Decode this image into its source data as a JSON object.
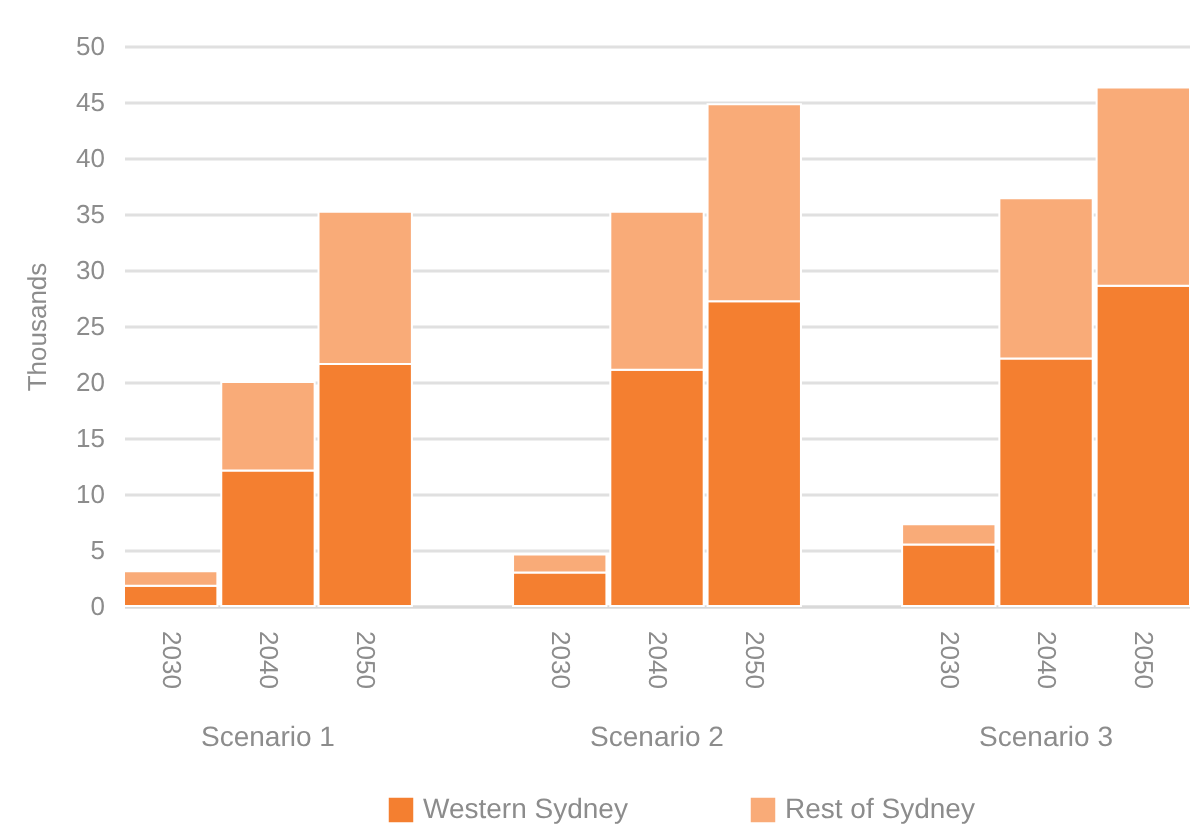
{
  "chart_data": {
    "type": "bar",
    "stacked": true,
    "ylabel": "Thousands",
    "categories": [
      "2030",
      "2040",
      "2050",
      "2030",
      "2040",
      "2050",
      "2030",
      "2040",
      "2050"
    ],
    "series": [
      {
        "name": "Western Sydney",
        "color": "#f47f30",
        "values": [
          1.8,
          12.1,
          21.6,
          3.0,
          21.1,
          27.2,
          5.5,
          22.1,
          28.6
        ]
      },
      {
        "name": "Rest of Sydney",
        "color": "#f9ab78",
        "values": [
          1.3,
          7.9,
          13.6,
          1.6,
          14.1,
          17.6,
          1.8,
          14.3,
          17.7
        ]
      }
    ],
    "annotations": [
      "Scenario 1",
      "Scenario 2",
      "Scenario 3"
    ],
    "ylim": [
      0,
      50
    ],
    "yticks": [
      0,
      5,
      10,
      15,
      20,
      25,
      30,
      35,
      40,
      45,
      50
    ],
    "grid": "y",
    "legend": "bottom"
  }
}
